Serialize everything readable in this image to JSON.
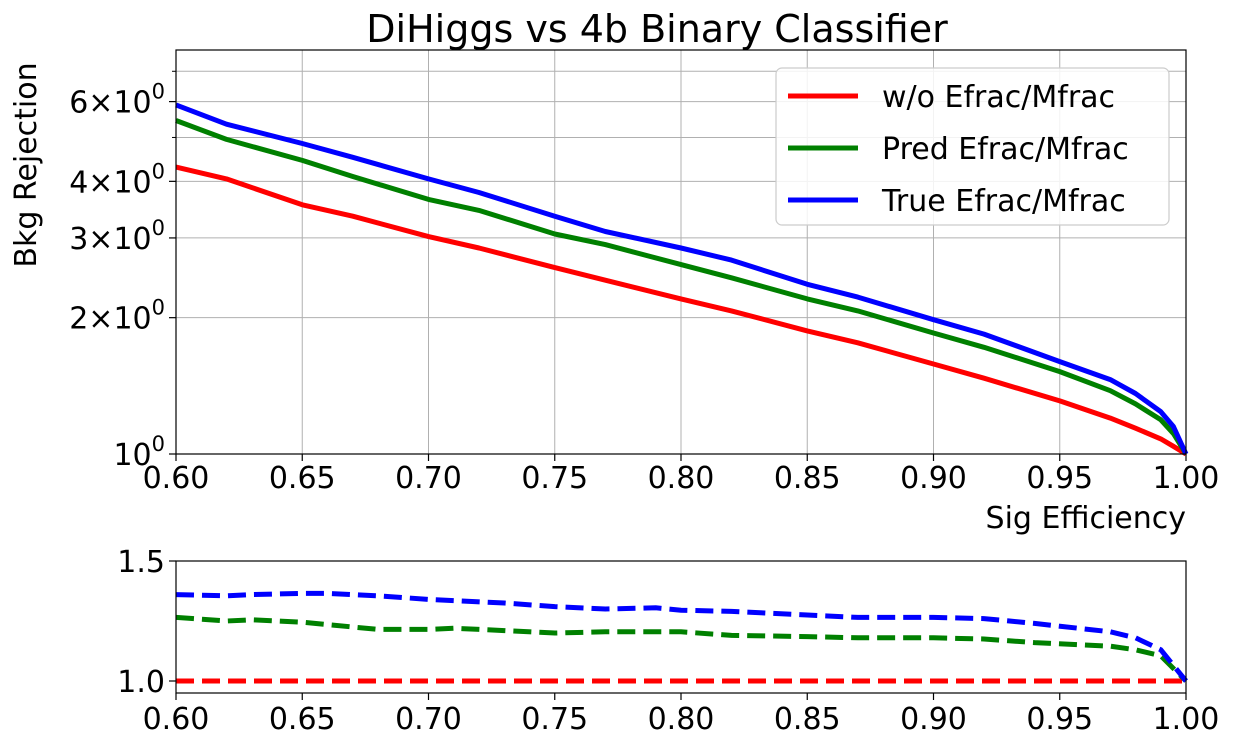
{
  "chart_data": [
    {
      "type": "line",
      "title": "DiHiggs vs 4b Binary Classifier",
      "xlabel": "Sig Efficiency",
      "ylabel": "Bkg Rejection",
      "yscale": "log",
      "xlim": [
        0.6,
        1.0
      ],
      "ylim": [
        1.0,
        7.8
      ],
      "grid": true,
      "legend_position": "top-right",
      "x_ticks": [
        "0.60",
        "0.65",
        "0.70",
        "0.75",
        "0.80",
        "0.85",
        "0.90",
        "0.95",
        "1.00"
      ],
      "y_ticks": [
        {
          "value": 1,
          "mant": "",
          "exp": "10",
          "sup": "0"
        },
        {
          "value": 2,
          "mant": "2",
          "exp": "10",
          "sup": "0"
        },
        {
          "value": 3,
          "mant": "3",
          "exp": "10",
          "sup": "0"
        },
        {
          "value": 4,
          "mant": "4",
          "exp": "10",
          "sup": "0"
        },
        {
          "value": 6,
          "mant": "6",
          "exp": "10",
          "sup": "0"
        }
      ],
      "minor_y_grid": [
        5,
        7
      ],
      "x": [
        0.6,
        0.62,
        0.65,
        0.67,
        0.7,
        0.72,
        0.75,
        0.77,
        0.8,
        0.82,
        0.85,
        0.87,
        0.9,
        0.92,
        0.95,
        0.97,
        0.98,
        0.99,
        0.995,
        1.0
      ],
      "series": [
        {
          "name": "w/o Efrac/Mfrac",
          "color": "#ff0000",
          "dash": "solid",
          "values": [
            4.3,
            4.05,
            3.55,
            3.35,
            3.02,
            2.85,
            2.58,
            2.42,
            2.2,
            2.07,
            1.87,
            1.76,
            1.58,
            1.47,
            1.31,
            1.2,
            1.14,
            1.08,
            1.04,
            1.0
          ]
        },
        {
          "name": "Pred Efrac/Mfrac",
          "color": "#008000",
          "dash": "solid",
          "values": [
            5.45,
            4.95,
            4.45,
            4.1,
            3.65,
            3.45,
            3.06,
            2.9,
            2.62,
            2.45,
            2.2,
            2.07,
            1.85,
            1.72,
            1.52,
            1.38,
            1.29,
            1.19,
            1.11,
            1.0
          ]
        },
        {
          "name": "True Efrac/Mfrac",
          "color": "#0000ff",
          "dash": "solid",
          "values": [
            5.9,
            5.35,
            4.85,
            4.52,
            4.05,
            3.78,
            3.35,
            3.1,
            2.85,
            2.68,
            2.37,
            2.22,
            1.98,
            1.84,
            1.6,
            1.46,
            1.36,
            1.24,
            1.15,
            1.0
          ]
        }
      ]
    },
    {
      "type": "line",
      "title": "",
      "xlabel": "",
      "ylabel": "",
      "xlim": [
        0.6,
        1.0
      ],
      "ylim": [
        0.95,
        1.5
      ],
      "grid": false,
      "x_ticks": [
        "0.60",
        "0.65",
        "0.70",
        "0.75",
        "0.80",
        "0.85",
        "0.90",
        "0.95",
        "1.00"
      ],
      "y_ticks": [
        {
          "value": 1.0,
          "label": "1.0"
        },
        {
          "value": 1.5,
          "label": "1.5"
        }
      ],
      "x": [
        0.6,
        0.62,
        0.63,
        0.65,
        0.66,
        0.68,
        0.7,
        0.71,
        0.73,
        0.75,
        0.77,
        0.79,
        0.8,
        0.82,
        0.85,
        0.87,
        0.9,
        0.92,
        0.94,
        0.97,
        0.98,
        0.99,
        1.0
      ],
      "series": [
        {
          "name": "w/o Efrac/Mfrac",
          "color": "#ff0000",
          "dash": "dashed",
          "values": [
            1.0,
            1.0,
            1.0,
            1.0,
            1.0,
            1.0,
            1.0,
            1.0,
            1.0,
            1.0,
            1.0,
            1.0,
            1.0,
            1.0,
            1.0,
            1.0,
            1.0,
            1.0,
            1.0,
            1.0,
            1.0,
            1.0,
            1.0
          ]
        },
        {
          "name": "Pred Efrac/Mfrac",
          "color": "#008000",
          "dash": "dashed",
          "values": [
            1.265,
            1.25,
            1.255,
            1.245,
            1.235,
            1.215,
            1.215,
            1.22,
            1.21,
            1.2,
            1.205,
            1.205,
            1.205,
            1.19,
            1.185,
            1.18,
            1.18,
            1.175,
            1.16,
            1.145,
            1.13,
            1.105,
            1.0
          ]
        },
        {
          "name": "True Efrac/Mfrac",
          "color": "#0000ff",
          "dash": "dashed",
          "values": [
            1.36,
            1.355,
            1.36,
            1.365,
            1.365,
            1.355,
            1.34,
            1.335,
            1.325,
            1.31,
            1.3,
            1.305,
            1.295,
            1.29,
            1.275,
            1.265,
            1.265,
            1.26,
            1.24,
            1.205,
            1.18,
            1.13,
            1.0
          ]
        }
      ]
    }
  ]
}
